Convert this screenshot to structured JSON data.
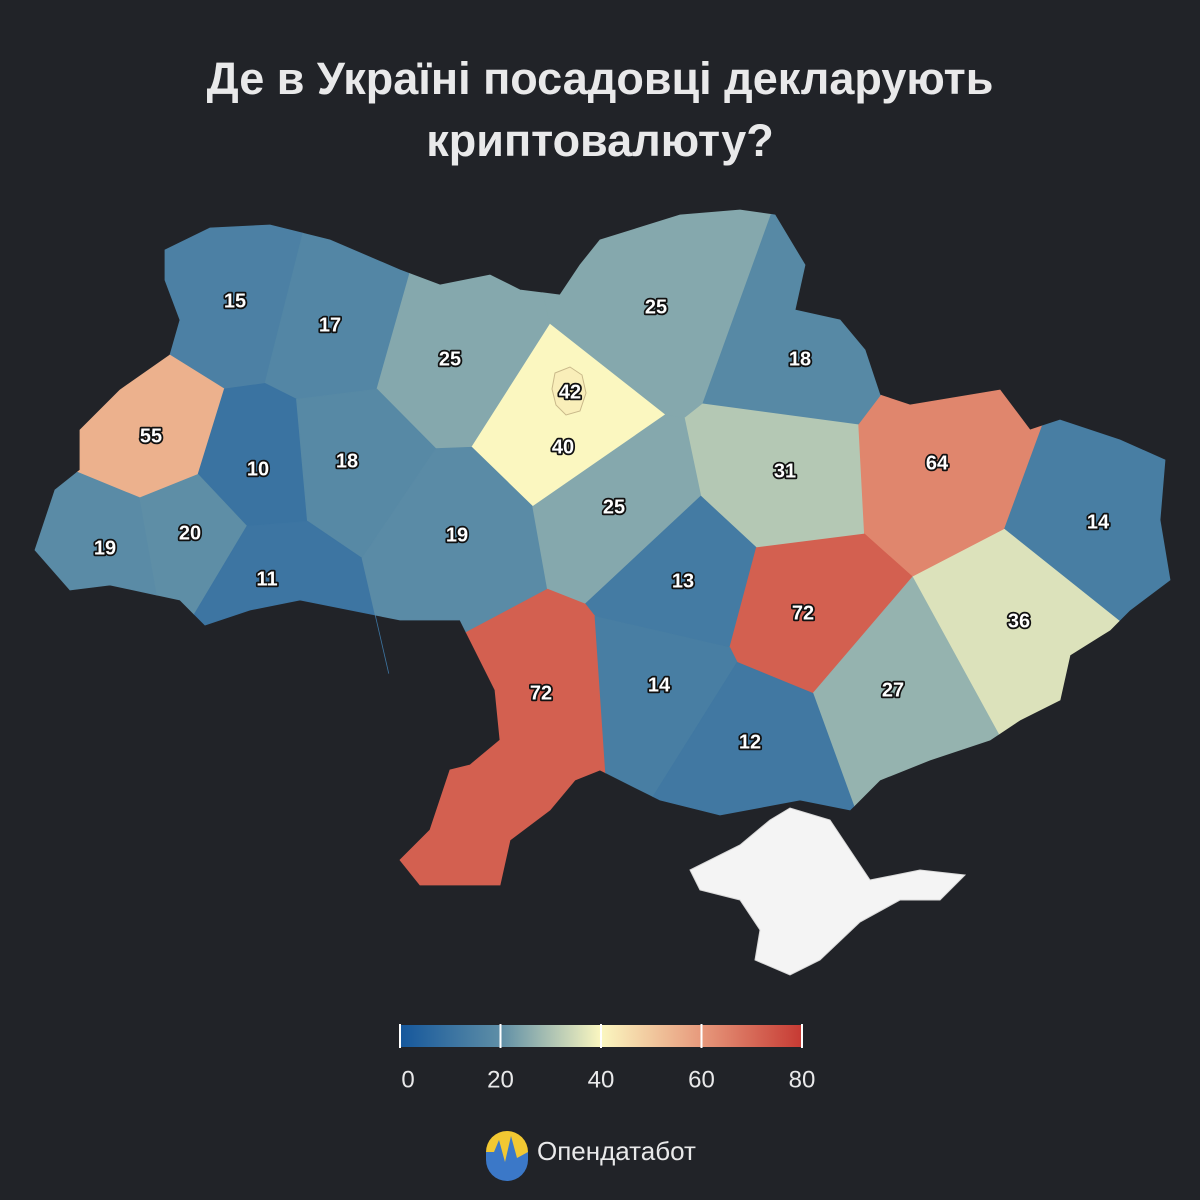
{
  "title": "Де в Україні посадовці декларують криптовалюту?",
  "map": {
    "type": "choropleth",
    "values": [
      15,
      17,
      25,
      42,
      40,
      25,
      18,
      55,
      10,
      18,
      31,
      64,
      14,
      19,
      20,
      11,
      19,
      25,
      13,
      72,
      36,
      72,
      14,
      27,
      12
    ],
    "colorbar": {
      "lim": [
        0,
        80
      ],
      "ticks": [
        0,
        20,
        40,
        60,
        80
      ],
      "colors": [
        "#15579c",
        "#5e8ea6",
        "#fbf7c0",
        "#e7997c",
        "#c63a33"
      ]
    }
  },
  "brand": "Опендатабот"
}
